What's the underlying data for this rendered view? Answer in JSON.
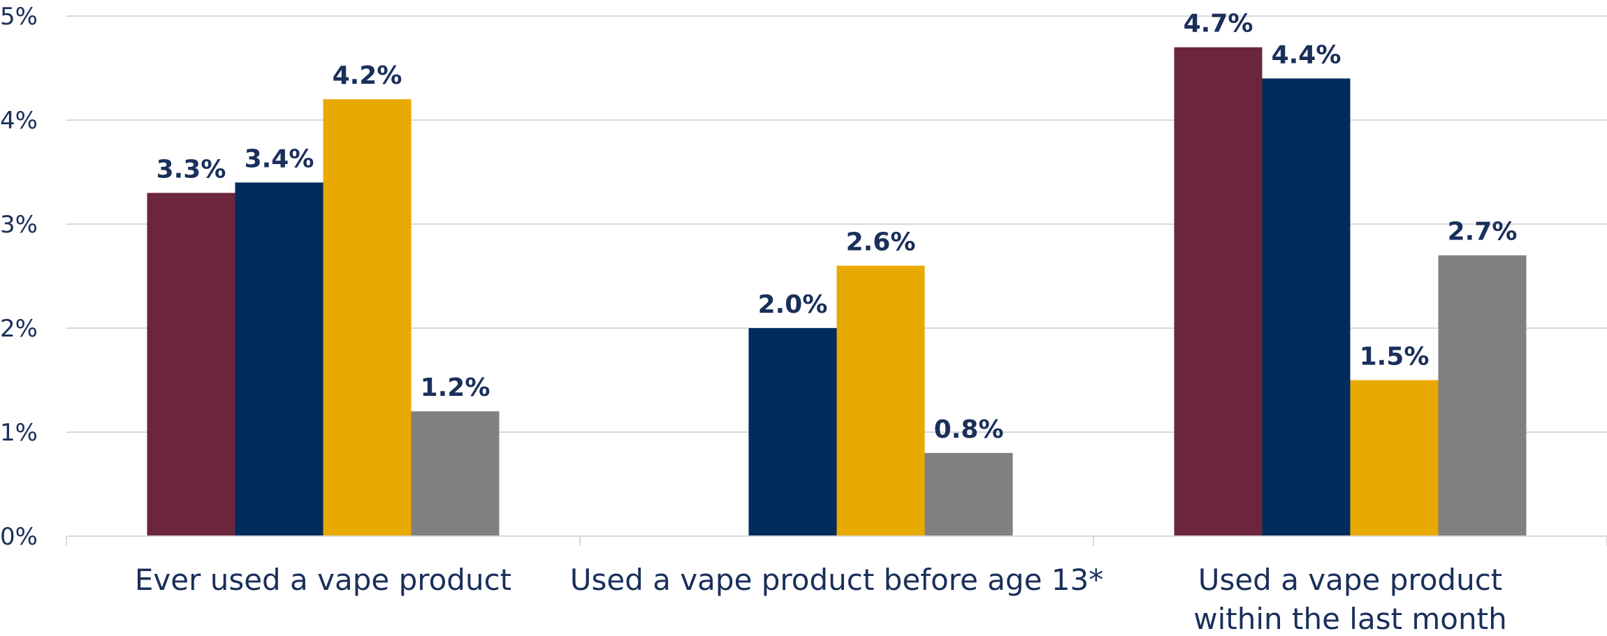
{
  "chart_data": {
    "type": "bar",
    "title": "",
    "xlabel": "",
    "ylabel": "",
    "ylim": [
      0,
      5
    ],
    "yticks": [
      0,
      1,
      2,
      3,
      4,
      5
    ],
    "ytick_labels": [
      "0%",
      "1%",
      "2%",
      "3%",
      "4%",
      "5%"
    ],
    "grid": true,
    "categories": [
      [
        "Ever used a vape product"
      ],
      [
        "Used a vape product before age 13*"
      ],
      [
        "Used a vape product",
        "within the last month"
      ]
    ],
    "series": [
      {
        "color": "#6b263d",
        "values": [
          3.3,
          null,
          4.7
        ],
        "labels": [
          "3.3%",
          "",
          "4.7%"
        ]
      },
      {
        "color": "#002c5c",
        "values": [
          3.4,
          2.0,
          4.4
        ],
        "labels": [
          "3.4%",
          "2.0%",
          "4.4%"
        ]
      },
      {
        "color": "#e8a900",
        "values": [
          4.2,
          2.6,
          1.5
        ],
        "labels": [
          "4.2%",
          "2.6%",
          "1.5%"
        ]
      },
      {
        "color": "#808080",
        "values": [
          1.2,
          0.8,
          2.7
        ],
        "labels": [
          "1.2%",
          "0.8%",
          "2.7%"
        ]
      }
    ]
  }
}
